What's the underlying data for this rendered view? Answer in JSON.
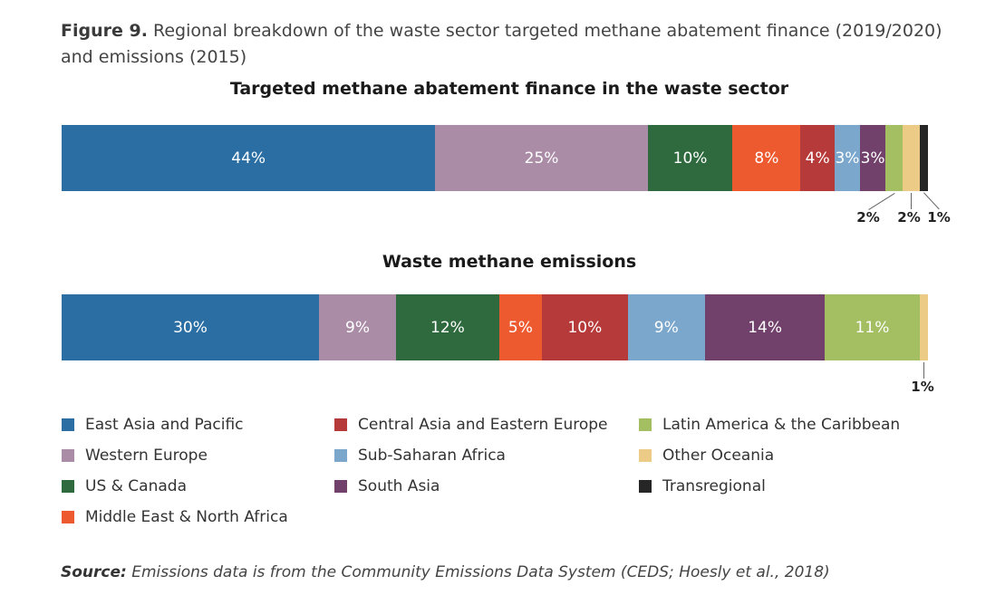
{
  "figure": {
    "label": "Figure 9.",
    "caption": "Regional breakdown of the waste sector targeted methane abatement finance (2019/2020) and emissions (2015)"
  },
  "source": {
    "label": "Source:",
    "text": "Emissions data is from the Community Emissions Data System (CEDS; Hoesly et al., 2018)"
  },
  "legend": [
    {
      "name": "East Asia and Pacific",
      "color": "#2a6ea4"
    },
    {
      "name": "Western Europe",
      "color": "#ab8ca7"
    },
    {
      "name": "US & Canada",
      "color": "#2e6a3d"
    },
    {
      "name": "Middle East & North Africa",
      "color": "#ee5a30"
    },
    {
      "name": "Central Asia and Eastern Europe",
      "color": "#b73a3a"
    },
    {
      "name": "Sub-Saharan Africa",
      "color": "#7ba7cd"
    },
    {
      "name": "South Asia",
      "color": "#72416b"
    },
    {
      "name": "Latin America & the Caribbean",
      "color": "#a3bf62"
    },
    {
      "name": "Other Oceania",
      "color": "#ebcb86"
    },
    {
      "name": "Transregional",
      "color": "#262626"
    }
  ],
  "chart_data": [
    {
      "type": "bar",
      "orientation": "horizontal-stacked-100",
      "title": "Targeted methane abatement finance in the waste sector",
      "unit": "%",
      "values": [
        {
          "category": "East Asia and Pacific",
          "value": 44,
          "label": "44%"
        },
        {
          "category": "Western Europe",
          "value": 25,
          "label": "25%"
        },
        {
          "category": "US & Canada",
          "value": 10,
          "label": "10%"
        },
        {
          "category": "Middle East & North Africa",
          "value": 8,
          "label": "8%"
        },
        {
          "category": "Central Asia and Eastern Europe",
          "value": 4,
          "label": "4%"
        },
        {
          "category": "Sub-Saharan Africa",
          "value": 3,
          "label": "3%"
        },
        {
          "category": "South Asia",
          "value": 3,
          "label": "3%"
        },
        {
          "category": "Latin America & the Caribbean",
          "value": 2,
          "label": "2%"
        },
        {
          "category": "Other Oceania",
          "value": 2,
          "label": "2%"
        },
        {
          "category": "Transregional",
          "value": 1,
          "label": "1%"
        }
      ]
    },
    {
      "type": "bar",
      "orientation": "horizontal-stacked-100",
      "title": "Waste methane emissions",
      "unit": "%",
      "values": [
        {
          "category": "East Asia and Pacific",
          "value": 30,
          "label": "30%"
        },
        {
          "category": "Western Europe",
          "value": 9,
          "label": "9%"
        },
        {
          "category": "US & Canada",
          "value": 12,
          "label": "12%"
        },
        {
          "category": "Middle East & North Africa",
          "value": 5,
          "label": "5%"
        },
        {
          "category": "Central Asia and Eastern Europe",
          "value": 10,
          "label": "10%"
        },
        {
          "category": "Sub-Saharan Africa",
          "value": 9,
          "label": "9%"
        },
        {
          "category": "South Asia",
          "value": 14,
          "label": "14%"
        },
        {
          "category": "Latin America & the Caribbean",
          "value": 11,
          "label": "11%"
        },
        {
          "category": "Other Oceania",
          "value": 1,
          "label": "1%"
        }
      ]
    }
  ]
}
